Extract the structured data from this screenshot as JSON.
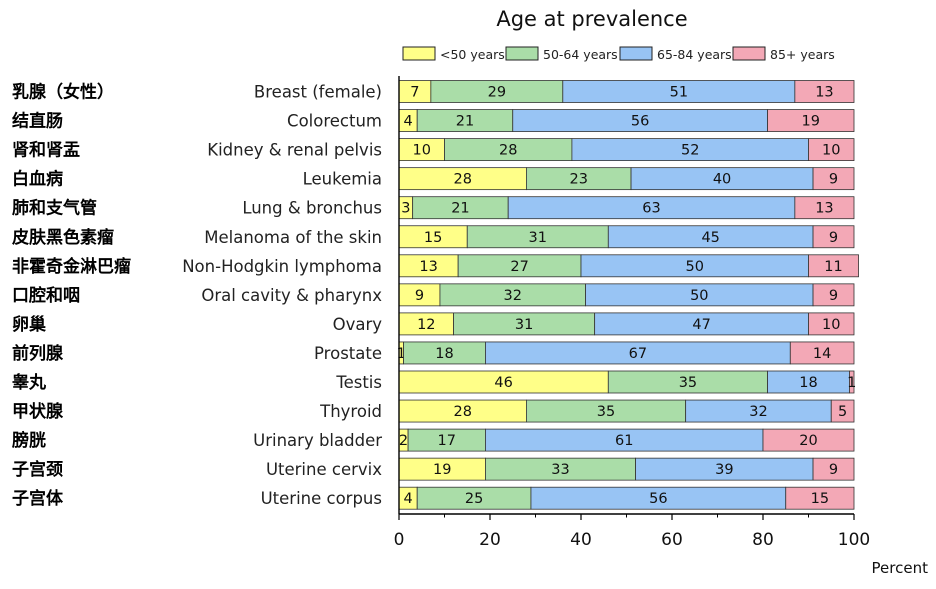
{
  "chart_data": {
    "type": "bar",
    "orientation": "horizontal",
    "stacked": true,
    "title": "Age at prevalence",
    "xlabel": "Percent",
    "ylabel": "",
    "xlim": [
      0,
      100
    ],
    "xticks": [
      0,
      20,
      40,
      60,
      80,
      100
    ],
    "xtick_labels": [
      "0",
      "20",
      "40",
      "60",
      "80",
      "100"
    ],
    "legend_position": "top",
    "categories": [
      {
        "zh": "乳腺（女性）",
        "en": "Breast (female)"
      },
      {
        "zh": "结直肠",
        "en": "Colorectum"
      },
      {
        "zh": "肾和肾盂",
        "en": "Kidney & renal pelvis"
      },
      {
        "zh": "白血病",
        "en": "Leukemia"
      },
      {
        "zh": "肺和支气管",
        "en": "Lung & bronchus"
      },
      {
        "zh": "皮肤黑色素瘤",
        "en": "Melanoma of the skin"
      },
      {
        "zh": "非霍奇金淋巴瘤",
        "en": "Non-Hodgkin lymphoma"
      },
      {
        "zh": "口腔和咽",
        "en": "Oral cavity & pharynx"
      },
      {
        "zh": "卵巢",
        "en": "Ovary"
      },
      {
        "zh": "前列腺",
        "en": "Prostate"
      },
      {
        "zh": "睾丸",
        "en": "Testis"
      },
      {
        "zh": "甲状腺",
        "en": "Thyroid"
      },
      {
        "zh": "膀胱",
        "en": "Urinary bladder"
      },
      {
        "zh": "子宫颈",
        "en": "Uterine cervix"
      },
      {
        "zh": "子宫体",
        "en": "Uterine corpus"
      }
    ],
    "series": [
      {
        "name": "<50 years",
        "color": "#ffff88",
        "values": [
          7,
          4,
          10,
          28,
          3,
          15,
          13,
          9,
          12,
          1,
          46,
          28,
          2,
          19,
          4
        ]
      },
      {
        "name": "50-64 years",
        "color": "#aadda8",
        "values": [
          29,
          21,
          28,
          23,
          21,
          31,
          27,
          32,
          31,
          18,
          35,
          35,
          17,
          33,
          25
        ]
      },
      {
        "name": "65-84 years",
        "color": "#98c4f4",
        "values": [
          51,
          56,
          52,
          40,
          63,
          45,
          50,
          50,
          47,
          67,
          18,
          32,
          61,
          39,
          56
        ]
      },
      {
        "name": "85+ years",
        "color": "#f3a8b6",
        "values": [
          13,
          19,
          10,
          9,
          13,
          9,
          11,
          9,
          10,
          14,
          1,
          5,
          20,
          9,
          15
        ]
      }
    ]
  }
}
